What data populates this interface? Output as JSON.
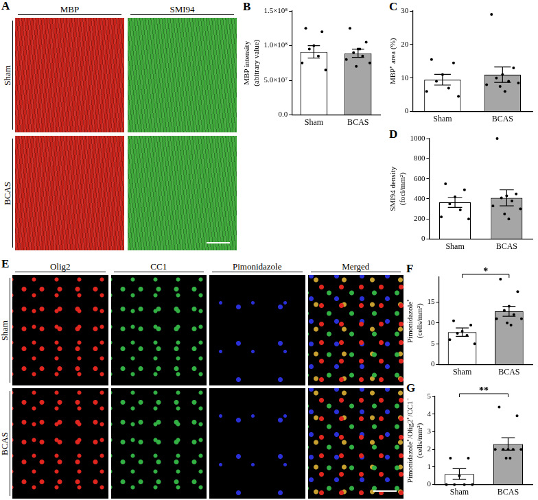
{
  "figure": {
    "panels": [
      {
        "label": "A",
        "rows": [
          "Sham",
          "BCAS"
        ],
        "columns": [
          {
            "name": "MBP",
            "color": "#c8231b"
          },
          {
            "name": "SMI94",
            "color": "#3fa83a"
          }
        ]
      },
      {
        "label": "E",
        "rows": [
          "Sham",
          "BCAS"
        ],
        "columns": [
          {
            "name": "Olig2",
            "color": "#e0261e"
          },
          {
            "name": "CC1",
            "color": "#33b044"
          },
          {
            "name": "Pimonidazole",
            "color": "#2a30d8"
          },
          {
            "name": "Merged",
            "color": "#c8a030"
          }
        ]
      }
    ]
  },
  "chart_data": [
    {
      "label": "B",
      "type": "bar",
      "categories": [
        "Sham",
        "BCAS"
      ],
      "values": [
        91000000,
        89000000
      ],
      "errors": [
        9000000,
        6000000
      ],
      "points": [
        [
          125000000,
          120000000,
          100000000,
          95000000,
          85000000,
          75000000,
          65000000
        ],
        [
          125000000,
          105000000,
          95000000,
          90000000,
          85000000,
          80000000,
          75000000,
          70000000,
          95000000
        ]
      ],
      "colors": [
        "#ffffff",
        "#a6a6a6"
      ],
      "y_label": [
        "MBP intensity",
        "(abitrary value)"
      ],
      "ylim": [
        0,
        150000000
      ],
      "yticks": [
        {
          "value": 0,
          "label": "0.0"
        },
        {
          "value": 50000000,
          "label": "5.0×10⁷"
        },
        {
          "value": 100000000,
          "label": "1.0×10⁸"
        },
        {
          "value": 150000000,
          "label": "1.5×10⁸"
        }
      ],
      "grid": false
    },
    {
      "label": "C",
      "type": "bar",
      "categories": [
        "Sham",
        "BCAS"
      ],
      "values": [
        9.5,
        11
      ],
      "errors": [
        1.6,
        2.3
      ],
      "points": [
        [
          15.5,
          14.5,
          11,
          9,
          7,
          6,
          4.5
        ],
        [
          29,
          13,
          11,
          10,
          9,
          8,
          8.5,
          7.5,
          6
        ]
      ],
      "colors": [
        "#ffffff",
        "#a6a6a6"
      ],
      "y_label": [
        "MBP⁺ area (%)"
      ],
      "ylim": [
        0,
        30
      ],
      "yticks": [
        0,
        10,
        20,
        30
      ],
      "grid": false
    },
    {
      "label": "D",
      "type": "bar",
      "categories": [
        "Sham",
        "BCAS"
      ],
      "values": [
        365,
        410
      ],
      "errors": [
        50,
        80
      ],
      "points": [
        [
          550,
          490,
          420,
          350,
          290,
          220,
          200
        ],
        [
          1000,
          450,
          430,
          410,
          380,
          330,
          300,
          250,
          200
        ]
      ],
      "colors": [
        "#ffffff",
        "#a6a6a6"
      ],
      "y_label": [
        "SMI94 density",
        "(foci/mm²)"
      ],
      "ylim": [
        0,
        1000
      ],
      "yticks": [
        0,
        200,
        400,
        600,
        800,
        1000
      ],
      "grid": false
    },
    {
      "label": "F",
      "type": "bar",
      "categories": [
        "Sham",
        "BCAS"
      ],
      "values": [
        7.8,
        12.8
      ],
      "errors": [
        1.0,
        1.2
      ],
      "points": [
        [
          10.5,
          9.5,
          8,
          7.5,
          7,
          6,
          5
        ],
        [
          20.5,
          17.5,
          14,
          13,
          12,
          11,
          11,
          10,
          9.5
        ]
      ],
      "colors": [
        "#ffffff",
        "#a6a6a6"
      ],
      "y_label": [
        "Pimonidazole⁺",
        "(cells/mm²)"
      ],
      "ylim": [
        0,
        21
      ],
      "yticks": [
        0,
        5,
        10,
        15
      ],
      "significance": "*",
      "grid": false
    },
    {
      "label": "G",
      "type": "bar",
      "categories": [
        "Sham",
        "BCAS"
      ],
      "values": [
        0.6,
        2.3
      ],
      "errors": [
        0.3,
        0.35
      ],
      "points": [
        [
          1.5,
          1.5,
          0.5,
          0,
          0,
          0,
          0
        ],
        [
          4.4,
          3.9,
          2,
          2,
          2,
          2,
          2,
          1.5,
          1.5
        ]
      ],
      "colors": [
        "#ffffff",
        "#a6a6a6"
      ],
      "y_label": [
        "Pimonidazole⁺/Olig2⁺/CC1⁻",
        "(cells/mm²)"
      ],
      "ylim": [
        0,
        5
      ],
      "yticks": [
        0,
        1,
        2,
        3,
        4,
        5
      ],
      "significance": "**",
      "grid": false
    }
  ]
}
